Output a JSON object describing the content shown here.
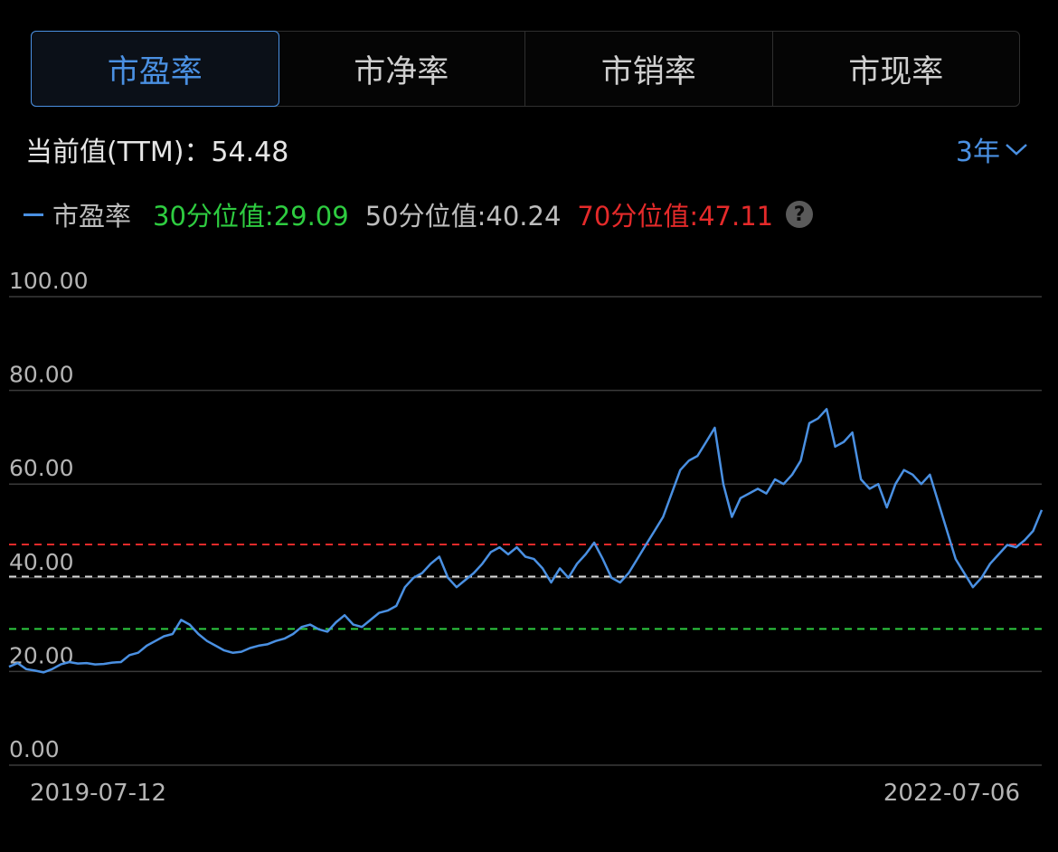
{
  "tabs": [
    {
      "label": "市盈率",
      "active": true
    },
    {
      "label": "市净率",
      "active": false
    },
    {
      "label": "市销率",
      "active": false
    },
    {
      "label": "市现率",
      "active": false
    }
  ],
  "current_label": "当前值(TTM)：",
  "current_value": "54.48",
  "range_label": "3年",
  "legend": {
    "series_name": "市盈率",
    "p30": "30分位值:29.09",
    "p50": "50分位值:40.24",
    "p70": "70分位值:47.11",
    "help": "?"
  },
  "colors": {
    "accent": "#4a90e2",
    "p30": "#2ecc40",
    "p50": "#d8d8d8",
    "p70": "#e52a2a",
    "grid": "#3a3a3a"
  },
  "chart_data": {
    "type": "line",
    "x_start": "2019-07-12",
    "x_end": "2022-07-06",
    "y_ticks": [
      "100.00",
      "80.00",
      "60.00",
      "40.00",
      "20.00",
      "0.00"
    ],
    "ylim": [
      0,
      100
    ],
    "grid": true,
    "reference_lines": [
      {
        "name": "30分位值",
        "value": 29.09,
        "color": "#2ecc40"
      },
      {
        "name": "50分位值",
        "value": 40.24,
        "color": "#d8d8d8"
      },
      {
        "name": "70分位值",
        "value": 47.11,
        "color": "#e52a2a"
      }
    ],
    "series": [
      {
        "name": "市盈率",
        "color": "#4a90e2",
        "values": [
          21.0,
          21.8,
          20.5,
          20.2,
          19.8,
          20.5,
          21.5,
          22.0,
          21.7,
          21.8,
          21.5,
          21.6,
          21.9,
          22.0,
          23.5,
          24.0,
          25.5,
          26.5,
          27.5,
          28.0,
          31.0,
          30.0,
          28.0,
          26.5,
          25.5,
          24.5,
          24.0,
          24.2,
          25.0,
          25.5,
          25.8,
          26.5,
          27.0,
          28.0,
          29.5,
          30.0,
          29.0,
          28.5,
          30.5,
          32.0,
          30.0,
          29.5,
          31.0,
          32.5,
          33.0,
          34.0,
          38.0,
          40.0,
          41.0,
          43.0,
          44.5,
          40.0,
          38.0,
          39.5,
          41.0,
          43.0,
          45.5,
          46.5,
          45.0,
          46.5,
          44.5,
          44.0,
          42.0,
          39.0,
          42.0,
          40.0,
          43.0,
          45.0,
          47.5,
          44.0,
          40.0,
          39.0,
          41.0,
          44.0,
          47.0,
          50.0,
          53.0,
          58.0,
          63.0,
          65.0,
          66.0,
          69.0,
          72.0,
          60.0,
          53.0,
          57.0,
          58.0,
          59.0,
          58.0,
          61.0,
          60.0,
          62.0,
          65.0,
          73.0,
          74.0,
          76.0,
          68.0,
          69.0,
          71.0,
          61.0,
          59.0,
          60.0,
          55.0,
          60.0,
          63.0,
          62.0,
          60.0,
          62.0,
          56.0,
          50.0,
          44.0,
          41.0,
          38.0,
          40.0,
          43.0,
          45.0,
          47.0,
          46.5,
          48.0,
          50.0,
          54.48
        ]
      }
    ]
  }
}
